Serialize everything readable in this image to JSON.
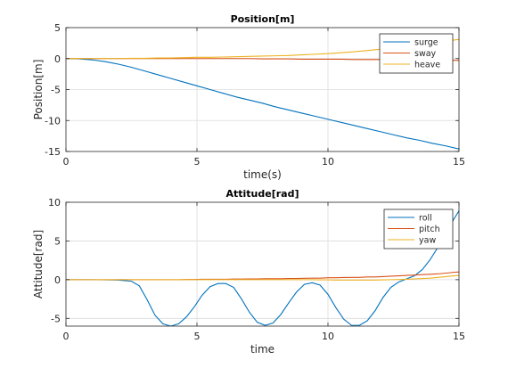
{
  "chart_data": [
    {
      "type": "line",
      "title": "Position[m]",
      "xlabel": "time(s)",
      "ylabel": "Position[m]",
      "xlim": [
        0,
        15
      ],
      "ylim": [
        -15,
        5
      ],
      "xticks": [
        0,
        5,
        10,
        15
      ],
      "yticks": [
        -15,
        -10,
        -5,
        0,
        5
      ],
      "grid": true,
      "legend_position": "top-right",
      "x": [
        0,
        0.5,
        1,
        1.5,
        2,
        2.5,
        3,
        3.5,
        4,
        4.5,
        5,
        5.5,
        6,
        6.5,
        7,
        7.5,
        8,
        8.5,
        9,
        9.5,
        10,
        10.5,
        11,
        11.5,
        12,
        12.5,
        13,
        13.5,
        14,
        14.5,
        15
      ],
      "series": [
        {
          "name": "surge",
          "color": "#0072bd",
          "values": [
            0,
            -0.05,
            -0.2,
            -0.5,
            -0.9,
            -1.4,
            -2.0,
            -2.6,
            -3.2,
            -3.8,
            -4.4,
            -5.0,
            -5.6,
            -6.2,
            -6.7,
            -7.2,
            -7.8,
            -8.3,
            -8.8,
            -9.3,
            -9.8,
            -10.3,
            -10.8,
            -11.3,
            -11.8,
            -12.3,
            -12.8,
            -13.2,
            -13.7,
            -14.1,
            -14.6
          ]
        },
        {
          "name": "sway",
          "color": "#d95319",
          "values": [
            0,
            0,
            0,
            0,
            0,
            0,
            0,
            0,
            0,
            0,
            0,
            0,
            0,
            0,
            0,
            -0.05,
            -0.05,
            -0.05,
            -0.1,
            -0.1,
            -0.1,
            -0.1,
            -0.15,
            -0.15,
            -0.15,
            -0.15,
            -0.2,
            -0.2,
            -0.2,
            -0.25,
            -0.3
          ]
        },
        {
          "name": "heave",
          "color": "#edb120",
          "values": [
            0,
            0,
            0,
            0,
            0,
            0.05,
            0.05,
            0.1,
            0.1,
            0.15,
            0.2,
            0.2,
            0.25,
            0.3,
            0.35,
            0.4,
            0.45,
            0.5,
            0.6,
            0.7,
            0.8,
            0.95,
            1.1,
            1.3,
            1.5,
            1.7,
            1.9,
            2.2,
            2.5,
            2.8,
            3.1
          ]
        }
      ]
    },
    {
      "type": "line",
      "title": "Attitude[rad]",
      "xlabel": "time",
      "ylabel": "Attitude[rad]",
      "xlim": [
        0,
        15
      ],
      "ylim": [
        -6,
        10
      ],
      "xticks": [
        0,
        5,
        10,
        15
      ],
      "yticks": [
        -5,
        0,
        5,
        10
      ],
      "grid": true,
      "legend_position": "top-right",
      "x": [
        0,
        1,
        2,
        2.5,
        2.8,
        3.1,
        3.4,
        3.7,
        4.0,
        4.3,
        4.6,
        4.9,
        5.2,
        5.5,
        5.8,
        6.1,
        6.4,
        6.7,
        7.0,
        7.3,
        7.6,
        7.9,
        8.2,
        8.5,
        8.8,
        9.1,
        9.4,
        9.7,
        10.0,
        10.3,
        10.6,
        10.9,
        11.2,
        11.5,
        11.8,
        12.1,
        12.4,
        12.7,
        13.0,
        13.3,
        13.6,
        13.9,
        14.2,
        14.5,
        14.8,
        15.0
      ],
      "series": [
        {
          "name": "roll",
          "color": "#0072bd",
          "values": [
            0,
            0,
            -0.05,
            -0.2,
            -0.8,
            -2.6,
            -4.6,
            -5.7,
            -6.0,
            -5.7,
            -4.8,
            -3.5,
            -2.0,
            -0.9,
            -0.5,
            -0.5,
            -1.0,
            -2.5,
            -4.2,
            -5.5,
            -5.9,
            -5.6,
            -4.5,
            -3.0,
            -1.6,
            -0.6,
            -0.4,
            -0.7,
            -1.9,
            -3.6,
            -5.1,
            -5.9,
            -5.9,
            -5.3,
            -4.0,
            -2.3,
            -1.0,
            -0.3,
            0.1,
            0.5,
            1.3,
            2.6,
            4.2,
            6.0,
            7.8,
            8.9
          ]
        },
        {
          "name": "pitch",
          "color": "#d95319",
          "values": [
            0,
            0,
            0,
            0,
            0,
            0,
            0,
            0,
            0,
            0,
            0.02,
            0.02,
            0.05,
            0.05,
            0.05,
            0.05,
            0.08,
            0.08,
            0.1,
            0.1,
            0.12,
            0.12,
            0.12,
            0.15,
            0.15,
            0.18,
            0.2,
            0.2,
            0.25,
            0.25,
            0.28,
            0.3,
            0.3,
            0.35,
            0.35,
            0.4,
            0.45,
            0.5,
            0.55,
            0.6,
            0.65,
            0.7,
            0.75,
            0.85,
            0.95,
            1.0
          ]
        },
        {
          "name": "yaw",
          "color": "#edb120",
          "values": [
            0,
            0,
            0,
            0,
            0,
            0,
            0,
            0,
            0,
            0,
            0,
            0,
            0,
            0,
            0,
            0,
            0,
            0,
            0,
            0,
            0,
            0,
            0,
            0,
            0,
            0,
            0,
            -0.02,
            -0.02,
            -0.05,
            -0.05,
            -0.05,
            -0.05,
            -0.05,
            -0.05,
            -0.02,
            0,
            0.02,
            0.05,
            0.1,
            0.15,
            0.2,
            0.3,
            0.4,
            0.5,
            0.55
          ]
        }
      ]
    }
  ]
}
